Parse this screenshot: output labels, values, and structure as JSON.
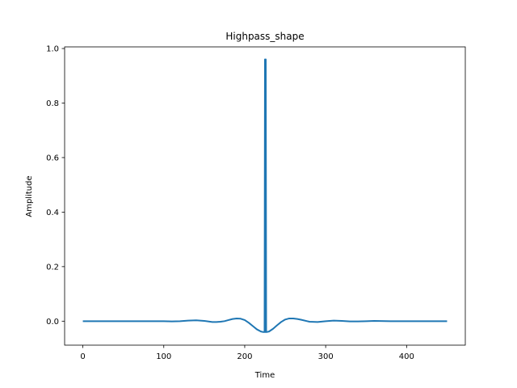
{
  "chart_data": {
    "type": "line",
    "title": "Highpass_shape",
    "xlabel": "Time",
    "ylabel": "Amplitude",
    "xlim": [
      -22.5,
      472.5
    ],
    "ylim": [
      -0.088,
      1.006
    ],
    "xticks": [
      0,
      100,
      200,
      300,
      400
    ],
    "yticks": [
      0.0,
      0.2,
      0.4,
      0.6,
      0.8,
      1.0
    ],
    "ytick_labels": [
      "0.0",
      "0.2",
      "0.4",
      "0.6",
      "0.8",
      "1.0"
    ],
    "grid": false,
    "series_color": "#1f77b4",
    "series": [
      {
        "x": [
          0,
          20,
          40,
          60,
          80,
          100,
          110,
          120,
          130,
          140,
          150,
          160,
          165,
          170,
          175,
          180,
          185,
          190,
          195,
          200,
          205,
          210,
          215,
          220,
          223,
          224.5,
          225,
          225.5,
          226,
          226.5,
          227,
          230,
          235,
          240,
          245,
          250,
          255,
          260,
          265,
          270,
          280,
          290,
          300,
          310,
          320,
          330,
          340,
          350,
          360,
          380,
          400,
          420,
          450
        ],
        "y": [
          0.0,
          0.0,
          0.0,
          0.0,
          0.0,
          0.0,
          -0.001,
          0.0,
          0.002,
          0.003,
          0.001,
          -0.003,
          -0.003,
          -0.002,
          0.0,
          0.004,
          0.008,
          0.01,
          0.009,
          0.004,
          -0.006,
          -0.018,
          -0.03,
          -0.038,
          -0.04,
          -0.04,
          0.96,
          -0.04,
          0.96,
          -0.04,
          -0.04,
          -0.038,
          -0.028,
          -0.015,
          -0.003,
          0.006,
          0.01,
          0.01,
          0.008,
          0.005,
          -0.002,
          -0.003,
          0.0,
          0.002,
          0.001,
          -0.001,
          -0.001,
          0.0,
          0.001,
          0.0,
          0.0,
          0.0,
          0.0
        ]
      }
    ]
  }
}
